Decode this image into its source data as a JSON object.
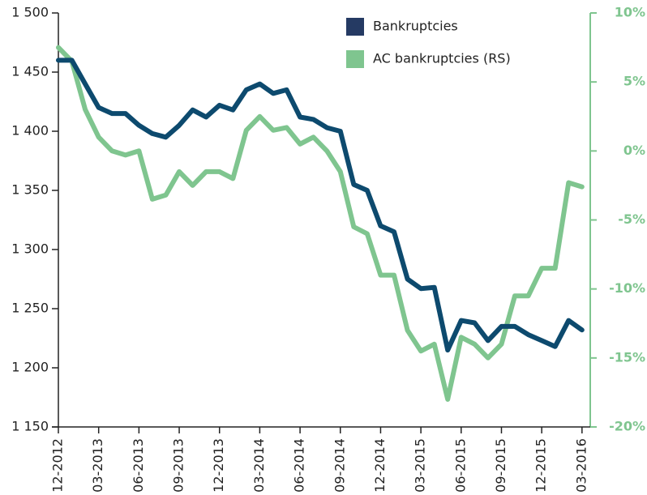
{
  "chart_data": {
    "type": "line",
    "categories": [
      "12-2012",
      null,
      null,
      "03-2013",
      null,
      null,
      "06-2013",
      null,
      null,
      "09-2013",
      null,
      null,
      "12-2013",
      null,
      null,
      "03-2014",
      null,
      null,
      "06-2014",
      null,
      null,
      "09-2014",
      null,
      null,
      "12-2014",
      null,
      null,
      "03-2015",
      null,
      null,
      "06-2015",
      null,
      null,
      "09-2015",
      null,
      null,
      "12-2015",
      null,
      null,
      "03-2016"
    ],
    "series": [
      {
        "name": "Bankruptcies",
        "color": "#0d4a6e",
        "legend_color": "#253a63",
        "values": [
          1460,
          1460,
          1440,
          1420,
          1415,
          1415,
          1405,
          1398,
          1395,
          1405,
          1418,
          1412,
          1422,
          1418,
          1435,
          1440,
          1432,
          1435,
          1412,
          1410,
          1403,
          1400,
          1355,
          1350,
          1320,
          1315,
          1275,
          1267,
          1268,
          1215,
          1240,
          1238,
          1223,
          1235,
          1235,
          1228,
          1223,
          1218,
          1240,
          1232
        ]
      },
      {
        "name": "AC bankruptcies (RS)",
        "color": "#7fc58f",
        "axis": "y2",
        "values": [
          7.5,
          6.5,
          3,
          1,
          0,
          -0.3,
          0,
          -3.5,
          -3.2,
          -1.5,
          -2.5,
          -1.5,
          -1.5,
          -2,
          1.5,
          2.5,
          1.5,
          1.7,
          0.5,
          1,
          0,
          -1.5,
          -5.5,
          -6,
          -9,
          -9,
          -13,
          -14.5,
          -14,
          -18,
          -13.5,
          -14,
          -15,
          -14,
          -10.5,
          -10.5,
          -8.5,
          -8.5,
          -2.3,
          -2.6
        ]
      }
    ],
    "ylim": [
      1150,
      1500
    ],
    "yticks": [
      {
        "value": 1150,
        "label": "1 150"
      },
      {
        "value": 1200,
        "label": "1 200"
      },
      {
        "value": 1250,
        "label": "1 250"
      },
      {
        "value": 1300,
        "label": "1 300"
      },
      {
        "value": 1350,
        "label": "1 350"
      },
      {
        "value": 1400,
        "label": "1 400"
      },
      {
        "value": 1450,
        "label": "1 450"
      },
      {
        "value": 1500,
        "label": "1 500"
      }
    ],
    "y2lim": [
      -20,
      10
    ],
    "y2ticks": [
      {
        "value": -20,
        "label": "-20%"
      },
      {
        "value": -15,
        "label": "-15%"
      },
      {
        "value": -10,
        "label": "-10%"
      },
      {
        "value": -5,
        "label": "-5%"
      },
      {
        "value": 0,
        "label": "0%"
      },
      {
        "value": 5,
        "label": "5%"
      },
      {
        "value": 10,
        "label": "10%"
      }
    ],
    "y2_color": "#7fc58f",
    "legend": "top"
  }
}
